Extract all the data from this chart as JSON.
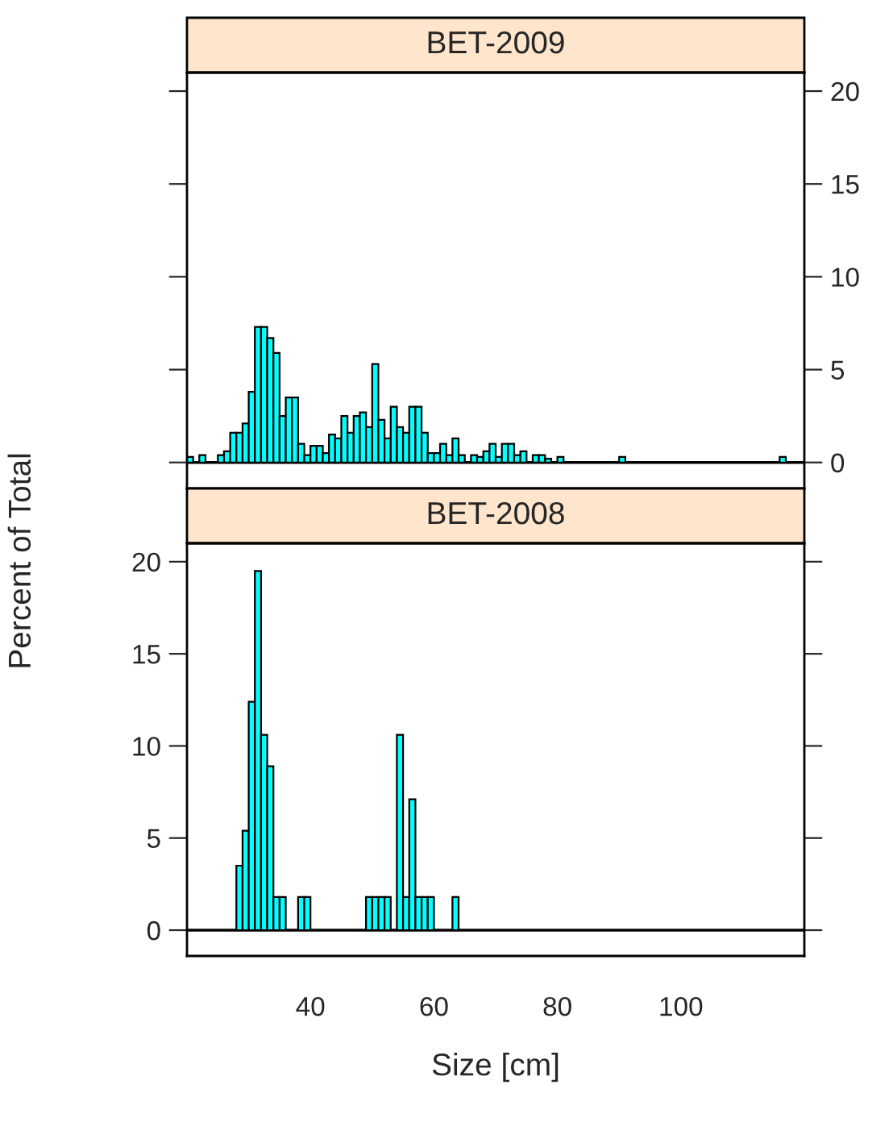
{
  "chart_data": [
    {
      "type": "histogram",
      "title": "BET-2009",
      "ylabel": "Percent of Total",
      "color": "#00ffff",
      "bins": [
        20,
        21,
        22,
        23,
        24,
        25,
        26,
        27,
        28,
        29,
        30,
        31,
        32,
        33,
        34,
        35,
        36,
        37,
        38,
        39,
        40,
        41,
        42,
        43,
        44,
        45,
        46,
        47,
        48,
        49,
        50,
        51,
        52,
        53,
        54,
        55,
        56,
        57,
        58,
        59,
        60,
        61,
        62,
        63,
        64,
        65,
        66,
        67,
        68,
        69,
        70,
        71,
        72,
        73,
        74,
        75,
        76,
        77,
        78,
        79,
        80,
        81,
        82,
        83,
        84,
        85,
        86,
        87,
        88,
        89,
        90,
        91,
        92,
        93,
        94,
        95,
        96,
        97,
        98,
        99,
        100,
        101,
        102,
        103,
        104,
        105,
        106,
        107,
        108,
        109,
        110,
        111,
        112,
        113,
        114,
        115,
        116,
        117,
        118
      ],
      "values": [
        0.3,
        0,
        0.4,
        0,
        0,
        0.4,
        0.6,
        1.6,
        1.6,
        2.1,
        3.8,
        7.3,
        7.3,
        6.7,
        5.9,
        2.5,
        3.5,
        3.5,
        1.0,
        0.4,
        0.9,
        0.9,
        0.5,
        1.5,
        1.3,
        2.5,
        1.6,
        2.5,
        2.7,
        1.9,
        5.3,
        2.3,
        1.3,
        3.0,
        1.9,
        1.6,
        3.0,
        3.0,
        1.6,
        0.5,
        0.5,
        1.0,
        0.4,
        1.3,
        0.4,
        0,
        0.4,
        0.3,
        0.6,
        1.0,
        0.3,
        1.0,
        1.0,
        0.4,
        0.6,
        0,
        0.4,
        0.4,
        0.2,
        0,
        0.3,
        0,
        0,
        0,
        0,
        0,
        0,
        0,
        0,
        0,
        0.3,
        0,
        0,
        0,
        0,
        0,
        0,
        0,
        0,
        0,
        0,
        0,
        0,
        0,
        0,
        0,
        0,
        0,
        0,
        0,
        0,
        0,
        0,
        0,
        0,
        0,
        0.3,
        0
      ],
      "xlim": [
        20,
        120
      ],
      "ylim": [
        -1.4,
        21
      ],
      "yticks": [
        0,
        5,
        10,
        15,
        20
      ],
      "tick_labels": "y"
    },
    {
      "type": "histogram",
      "title": "BET-2008",
      "xlabel": "Size [cm]",
      "color": "#00ffff",
      "bins": [
        20,
        21,
        22,
        23,
        24,
        25,
        26,
        27,
        28,
        29,
        30,
        31,
        32,
        33,
        34,
        35,
        36,
        37,
        38,
        39,
        40,
        41,
        42,
        43,
        44,
        45,
        46,
        47,
        48,
        49,
        50,
        51,
        52,
        53,
        54,
        55,
        56,
        57,
        58,
        59,
        60,
        61,
        62,
        63,
        64,
        65,
        66,
        67,
        68,
        69,
        70,
        71,
        72,
        73,
        74,
        75,
        76,
        77,
        78,
        79,
        80,
        81,
        82,
        83,
        84,
        85,
        86,
        87,
        88,
        89,
        90,
        91,
        92,
        93,
        94,
        95,
        96,
        97,
        98,
        99,
        100,
        101,
        102,
        103,
        104,
        105,
        106,
        107,
        108,
        109,
        110,
        111,
        112,
        113,
        114,
        115,
        116,
        117,
        118
      ],
      "values": [
        0,
        0,
        0,
        0,
        0,
        0,
        0,
        0,
        3.5,
        5.4,
        12.4,
        19.5,
        10.6,
        8.9,
        1.8,
        1.8,
        0,
        0,
        1.8,
        1.8,
        0,
        0,
        0,
        0,
        0,
        0,
        0,
        0,
        0,
        1.8,
        1.8,
        1.8,
        1.8,
        0,
        10.6,
        1.8,
        7.1,
        1.8,
        1.8,
        1.8,
        0,
        0,
        0,
        1.8,
        0,
        0,
        0,
        0,
        0,
        0,
        0,
        0,
        0,
        0,
        0,
        0,
        0,
        0,
        0,
        0,
        0,
        0,
        0,
        0,
        0,
        0,
        0,
        0,
        0,
        0,
        0,
        0,
        0,
        0,
        0,
        0,
        0,
        0,
        0,
        0,
        0,
        0,
        0,
        0,
        0,
        0,
        0,
        0,
        0,
        0,
        0,
        0,
        0,
        0,
        0,
        0,
        0,
        0
      ],
      "xlim": [
        20,
        120
      ],
      "xticks": [
        40,
        60,
        80,
        100
      ],
      "ylim": [
        -1.4,
        21
      ],
      "yticks": [
        0,
        5,
        10,
        15,
        20
      ]
    }
  ]
}
